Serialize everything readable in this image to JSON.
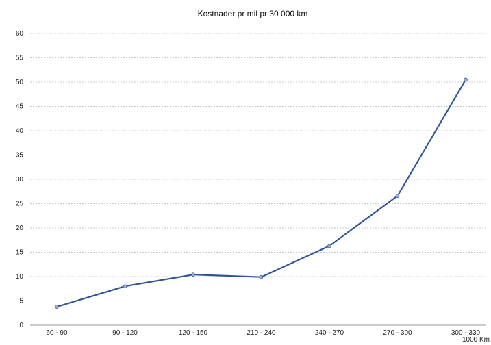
{
  "chart_data": {
    "type": "line",
    "title": "Kostnader pr mil pr 30 000 km",
    "xlabel": "1000 Km",
    "ylabel": "",
    "categories": [
      "60 - 90",
      "90 - 120",
      "120 - 150",
      "210 - 240",
      "240 - 270",
      "270 - 300",
      "300 - 330"
    ],
    "series": [
      {
        "values": [
          3.8,
          8.0,
          10.4,
          9.9,
          16.3,
          26.6,
          50.5
        ]
      }
    ],
    "ylim": [
      0,
      60
    ],
    "yticks": [
      0,
      5,
      10,
      15,
      20,
      25,
      30,
      35,
      40,
      45,
      50,
      55,
      60
    ],
    "grid": true,
    "colors": {
      "line": "#2f5597",
      "marker_fill": "#9ab3d6",
      "grid": "#c9c9c9",
      "axis": "#9a9a9a"
    }
  }
}
